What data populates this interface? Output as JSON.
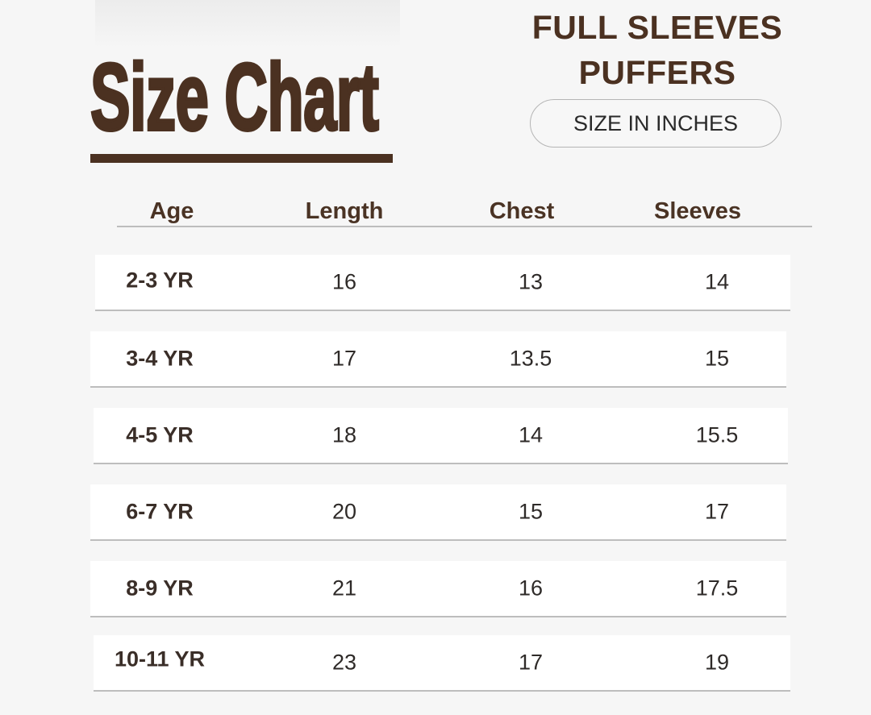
{
  "title": "Size Chart",
  "product_line1": "FULL SLEEVES",
  "product_line2": "PUFFERS",
  "unit_label": "SIZE IN INCHES",
  "colors": {
    "brand_brown": "#4b3121",
    "background": "#f6f6f6"
  },
  "table": {
    "headers": [
      "Age",
      "Length",
      "Chest",
      "Sleeves"
    ],
    "rows": [
      [
        "2-3 YR",
        "16",
        "13",
        "14"
      ],
      [
        "3-4 YR",
        "17",
        "13.5",
        "15"
      ],
      [
        "4-5 YR",
        "18",
        "14",
        "15.5"
      ],
      [
        "6-7 YR",
        "20",
        "15",
        "17"
      ],
      [
        "8-9 YR",
        "21",
        "16",
        "17.5"
      ],
      [
        "10-11 YR",
        "23",
        "17",
        "19"
      ]
    ]
  }
}
